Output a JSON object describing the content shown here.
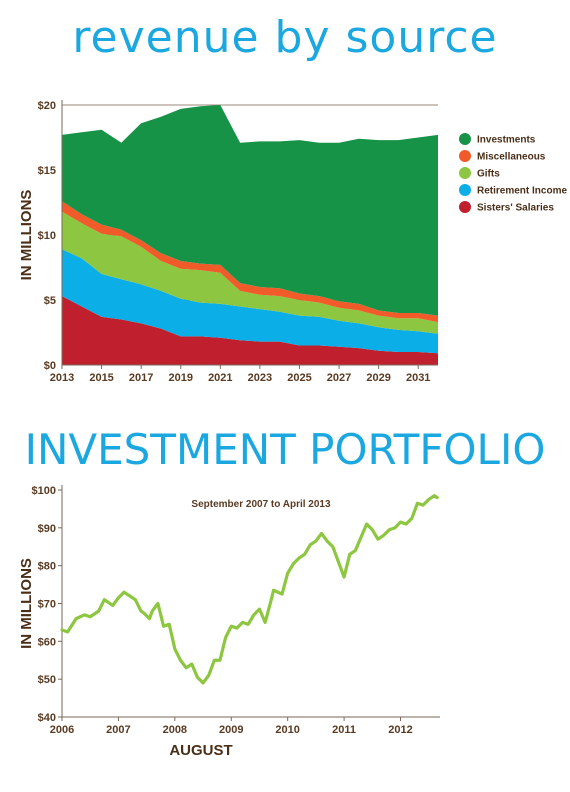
{
  "chart_data": [
    {
      "type": "area",
      "stacked": true,
      "title": "revenue by source",
      "ylabel": "IN MILLIONS",
      "ylim": [
        0,
        20
      ],
      "yticks": [
        "$0",
        "$5",
        "$10",
        "$15",
        "$20"
      ],
      "xlim": [
        2013,
        2032
      ],
      "xticks": [
        "2013",
        "2015",
        "2017",
        "2019",
        "2021",
        "2023",
        "2025",
        "2027",
        "2029",
        "2031"
      ],
      "grid": "horizontal",
      "legend_position": "right",
      "x": [
        2013,
        2014,
        2015,
        2016,
        2017,
        2018,
        2019,
        2020,
        2021,
        2022,
        2023,
        2024,
        2025,
        2026,
        2027,
        2028,
        2029,
        2030,
        2031,
        2032
      ],
      "series": [
        {
          "name": "Sisters' Salaries",
          "color": "#c0202e",
          "values": [
            5.3,
            4.5,
            3.7,
            3.5,
            3.2,
            2.8,
            2.2,
            2.2,
            2.1,
            1.9,
            1.8,
            1.8,
            1.5,
            1.5,
            1.4,
            1.3,
            1.1,
            1.0,
            1.0,
            0.9
          ]
        },
        {
          "name": "Retirement Income",
          "color": "#0baee6",
          "values": [
            3.6,
            3.7,
            3.3,
            3.1,
            3.0,
            2.9,
            2.9,
            2.6,
            2.6,
            2.6,
            2.5,
            2.3,
            2.3,
            2.2,
            2.0,
            1.9,
            1.8,
            1.7,
            1.6,
            1.5
          ]
        },
        {
          "name": "Gifts",
          "color": "#8dc640",
          "values": [
            2.9,
            2.7,
            3.1,
            3.3,
            2.9,
            2.3,
            2.3,
            2.5,
            2.4,
            1.2,
            1.1,
            1.2,
            1.2,
            1.1,
            1.0,
            1.0,
            0.9,
            0.9,
            1.0,
            0.9
          ]
        },
        {
          "name": "Miscellaneous",
          "color": "#f15a29",
          "values": [
            0.8,
            0.7,
            0.7,
            0.5,
            0.5,
            0.6,
            0.6,
            0.5,
            0.6,
            0.6,
            0.6,
            0.6,
            0.5,
            0.5,
            0.5,
            0.5,
            0.4,
            0.4,
            0.4,
            0.5
          ]
        },
        {
          "name": "Investments",
          "color": "#179347",
          "values": [
            5.1,
            6.3,
            7.3,
            6.7,
            9.0,
            10.5,
            11.7,
            12.1,
            12.3,
            10.8,
            11.2,
            11.3,
            11.8,
            11.8,
            12.2,
            12.7,
            13.1,
            13.3,
            13.5,
            13.9
          ]
        }
      ],
      "legend_order": [
        "Investments",
        "Miscellaneous",
        "Gifts",
        "Retirement Income",
        "Sisters' Salaries"
      ]
    },
    {
      "type": "line",
      "title": "Investment portfolio",
      "subtitle": "September 2007 to April 2013",
      "xlabel": "AUGUST",
      "ylabel": "IN MILLIONS",
      "ylim": [
        40,
        100
      ],
      "yticks": [
        "$40",
        "$50",
        "$60",
        "$70",
        "$80",
        "$90",
        "$100"
      ],
      "xlim": [
        2006,
        2012.7
      ],
      "xticks": [
        "2006",
        "2007",
        "2008",
        "2009",
        "2010",
        "2011",
        "2012"
      ],
      "grid": "none",
      "color": "#8dc63f",
      "series": [
        {
          "x": [
            2006.0,
            2006.1,
            2006.25,
            2006.4,
            2006.5,
            2006.65,
            2006.75,
            2006.9,
            2007.0,
            2007.1,
            2007.2,
            2007.3,
            2007.4,
            2007.45,
            2007.55,
            2007.6,
            2007.7,
            2007.8,
            2007.9,
            2008.0,
            2008.1,
            2008.2,
            2008.3,
            2008.4,
            2008.5,
            2008.6,
            2008.7,
            2008.8,
            2008.9,
            2009.0,
            2009.1,
            2009.2,
            2009.3,
            2009.4,
            2009.5,
            2009.6,
            2009.7,
            2009.75,
            2009.9,
            2010.0,
            2010.1,
            2010.2,
            2010.3,
            2010.4,
            2010.5,
            2010.6,
            2010.7,
            2010.8,
            2010.9,
            2011.0,
            2011.1,
            2011.2,
            2011.3,
            2011.4,
            2011.5,
            2011.6,
            2011.7,
            2011.8,
            2011.9,
            2012.0,
            2012.1,
            2012.2,
            2012.3,
            2012.4,
            2012.5,
            2012.6,
            2012.65
          ],
          "values": [
            63.0,
            62.5,
            66.0,
            67.0,
            66.5,
            68.0,
            71.0,
            69.5,
            71.5,
            73.0,
            72.0,
            71.0,
            68.0,
            67.5,
            66.0,
            68.0,
            70.0,
            64.0,
            64.5,
            58.0,
            55.0,
            53.0,
            54.0,
            50.5,
            49.0,
            51.0,
            55.0,
            55.0,
            61.0,
            64.0,
            63.5,
            65.0,
            64.5,
            67.0,
            68.5,
            65.0,
            70.5,
            73.5,
            72.5,
            78.0,
            80.5,
            82.0,
            83.0,
            85.5,
            86.5,
            88.5,
            86.5,
            85.0,
            81.0,
            77.0,
            83.0,
            84.0,
            87.5,
            91.0,
            89.5,
            87.0,
            88.0,
            89.5,
            90.0,
            91.5,
            91.0,
            92.5,
            96.5,
            96.0,
            97.5,
            98.5,
            98.0
          ]
        }
      ]
    }
  ]
}
